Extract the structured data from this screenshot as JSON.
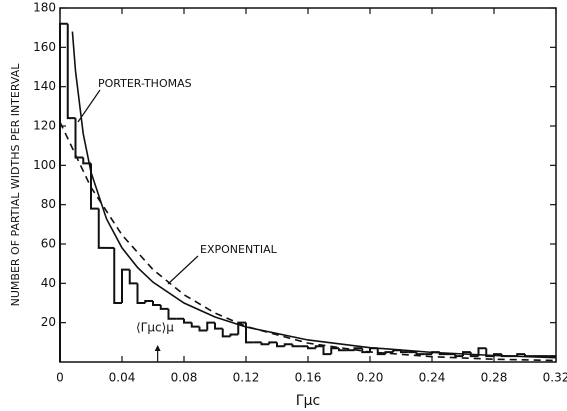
{
  "chart_data": {
    "type": "histogram",
    "xlabel": "Γμc",
    "ylabel": "NUMBER OF PARTIAL WIDTHS PER INTERVAL",
    "bins": [
      0,
      0.005,
      0.01,
      0.015,
      0.02,
      0.025,
      0.03,
      0.035,
      0.04,
      0.045,
      0.05,
      0.055,
      0.06,
      0.065,
      0.07,
      0.075,
      0.08,
      0.085,
      0.09,
      0.095,
      0.1,
      0.105,
      0.11,
      0.115,
      0.12,
      0.125,
      0.13,
      0.135,
      0.14,
      0.145,
      0.15,
      0.155,
      0.16,
      0.165,
      0.17,
      0.175,
      0.18,
      0.185,
      0.19,
      0.195,
      0.2,
      0.205,
      0.21,
      0.215,
      0.22,
      0.225,
      0.23,
      0.235,
      0.24,
      0.245,
      0.25,
      0.255,
      0.26,
      0.265,
      0.27,
      0.275,
      0.28,
      0.285,
      0.29,
      0.295,
      0.3,
      0.305,
      0.31,
      0.315,
      0.32
    ],
    "counts": [
      172,
      124,
      104,
      101,
      78,
      58,
      58,
      30,
      47,
      40,
      30,
      31,
      29,
      27,
      22,
      22,
      20,
      18,
      16,
      20,
      17,
      13,
      14,
      20,
      10,
      10,
      9,
      10,
      8,
      9,
      8,
      8,
      7,
      8,
      4,
      7,
      6,
      6,
      7,
      5,
      7,
      4,
      5,
      6,
      5,
      5,
      4,
      4,
      5,
      4,
      4,
      3,
      5,
      3,
      7,
      3,
      4,
      3,
      3,
      4,
      3,
      3,
      3,
      3
    ],
    "color": "#111111",
    "series": [
      {
        "name": "PORTER-THOMAS",
        "color": "#111111",
        "dashed": false,
        "x": [
          0.008,
          0.01,
          0.015,
          0.02,
          0.03,
          0.04,
          0.05,
          0.06,
          0.08,
          0.1,
          0.12,
          0.16,
          0.2,
          0.24,
          0.28,
          0.32
        ],
        "values": [
          168,
          148,
          116,
          96.5,
          72.8,
          58,
          48.1,
          40.6,
          30,
          22.9,
          17.8,
          11.2,
          7.3,
          4.9,
          3.3,
          2.2
        ]
      },
      {
        "name": "EXPONENTIAL",
        "color": "#111111",
        "dashed": true,
        "x": [
          0,
          0.02,
          0.04,
          0.06,
          0.08,
          0.1,
          0.12,
          0.16,
          0.2,
          0.24,
          0.28,
          0.32
        ],
        "values": [
          122,
          88.8,
          64.6,
          47,
          34.2,
          24.9,
          18.1,
          9.6,
          5.1,
          2.7,
          1.4,
          0.76
        ]
      }
    ],
    "mean_label": "⟨Γμc⟩μ",
    "mean_value": 0.063,
    "xlim": [
      0,
      0.32
    ],
    "ylim": [
      0,
      180
    ],
    "xticks": [
      0,
      0.04,
      0.08,
      0.12,
      0.16,
      {
        "value": 0.2,
        "label": "0.20"
      },
      0.24,
      0.28,
      0.32
    ],
    "yticks": [
      20,
      40,
      60,
      80,
      100,
      120,
      140,
      160,
      180
    ]
  }
}
